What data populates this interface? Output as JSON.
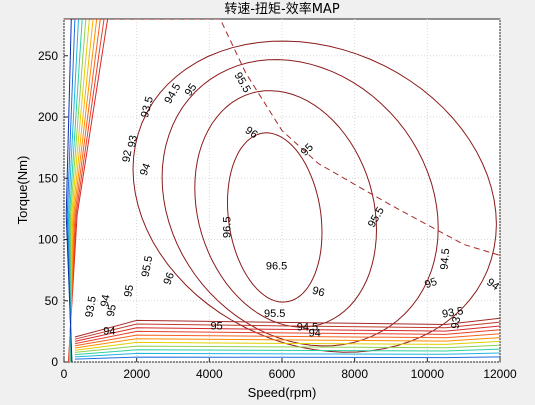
{
  "chart_data": {
    "type": "contour",
    "title": "转速-扭矩-效率MAP",
    "xlabel": "Speed(rpm)",
    "ylabel": "Torque(Nm)",
    "xlim": [
      0,
      12000
    ],
    "ylim": [
      0,
      280
    ],
    "xticks": [
      "0",
      "2000",
      "4000",
      "6000",
      "8000",
      "10000",
      "12000"
    ],
    "yticks": [
      "0",
      "50",
      "100",
      "150",
      "200",
      "250"
    ],
    "grid": true,
    "contour_levels": [
      {
        "value": "96.5",
        "color": "#8b1a1a"
      },
      {
        "value": "96",
        "color": "#8b1a1a"
      },
      {
        "value": "95.5",
        "color": "#8b1a1a"
      },
      {
        "value": "95",
        "color": "#8b1a1a"
      },
      {
        "value": "94.5",
        "color": "#a52a2a"
      },
      {
        "value": "94",
        "color": "#c0392b"
      },
      {
        "value": "93.5",
        "color": "#d62728"
      },
      {
        "value": "93",
        "color": "#e8402a"
      }
    ],
    "max_torque_envelope": [
      [
        0,
        280
      ],
      [
        4300,
        280
      ],
      [
        5000,
        236
      ],
      [
        6000,
        189
      ],
      [
        7000,
        162
      ],
      [
        8000,
        145
      ],
      [
        9000,
        128
      ],
      [
        10000,
        112
      ],
      [
        11000,
        96
      ],
      [
        12000,
        87
      ]
    ],
    "contour_labels": [
      {
        "text": "96.5",
        "x": 4500,
        "y": 110,
        "rot": -90
      },
      {
        "text": "96.5",
        "x": 5850,
        "y": 78,
        "rot": 0
      },
      {
        "text": "96",
        "x": 5150,
        "y": 187,
        "rot": 35
      },
      {
        "text": "96",
        "x": 2900,
        "y": 68,
        "rot": -70
      },
      {
        "text": "96",
        "x": 7000,
        "y": 57,
        "rot": 15
      },
      {
        "text": "95.5",
        "x": 4900,
        "y": 228,
        "rot": 60
      },
      {
        "text": "95.5",
        "x": 2300,
        "y": 78,
        "rot": -80
      },
      {
        "text": "95.5",
        "x": 8600,
        "y": 118,
        "rot": -60
      },
      {
        "text": "95.5",
        "x": 5800,
        "y": 39,
        "rot": 0
      },
      {
        "text": "95",
        "x": 3500,
        "y": 222,
        "rot": -55
      },
      {
        "text": "95",
        "x": 1800,
        "y": 58,
        "rot": -80
      },
      {
        "text": "95",
        "x": 6700,
        "y": 173,
        "rot": -45
      },
      {
        "text": "95",
        "x": 10100,
        "y": 64,
        "rot": -20
      },
      {
        "text": "95",
        "x": 4200,
        "y": 29,
        "rot": 0
      },
      {
        "text": "94.5",
        "x": 3000,
        "y": 219,
        "rot": -60
      },
      {
        "text": "94.5",
        "x": 10500,
        "y": 84,
        "rot": -85
      },
      {
        "text": "94.5",
        "x": 6700,
        "y": 28,
        "rot": 0
      },
      {
        "text": "94",
        "x": 2250,
        "y": 157,
        "rot": -70
      },
      {
        "text": "94",
        "x": 11800,
        "y": 63,
        "rot": 35
      },
      {
        "text": "94",
        "x": 6900,
        "y": 23,
        "rot": 0
      },
      {
        "text": "93.5",
        "x": 2300,
        "y": 208,
        "rot": -75
      },
      {
        "text": "93.5",
        "x": 10700,
        "y": 40,
        "rot": -10
      },
      {
        "text": "93.5",
        "x": 750,
        "y": 45,
        "rot": -80
      },
      {
        "text": "93",
        "x": 1900,
        "y": 180,
        "rot": -80
      },
      {
        "text": "93",
        "x": 10800,
        "y": 32,
        "rot": -80
      },
      {
        "text": "92",
        "x": 1750,
        "y": 168,
        "rot": -80
      },
      {
        "text": "95",
        "x": 1320,
        "y": 42,
        "rot": -80
      },
      {
        "text": "94",
        "x": 1150,
        "y": 50,
        "rot": -80
      },
      {
        "text": "94",
        "x": 1250,
        "y": 25,
        "rot": 0
      }
    ]
  }
}
